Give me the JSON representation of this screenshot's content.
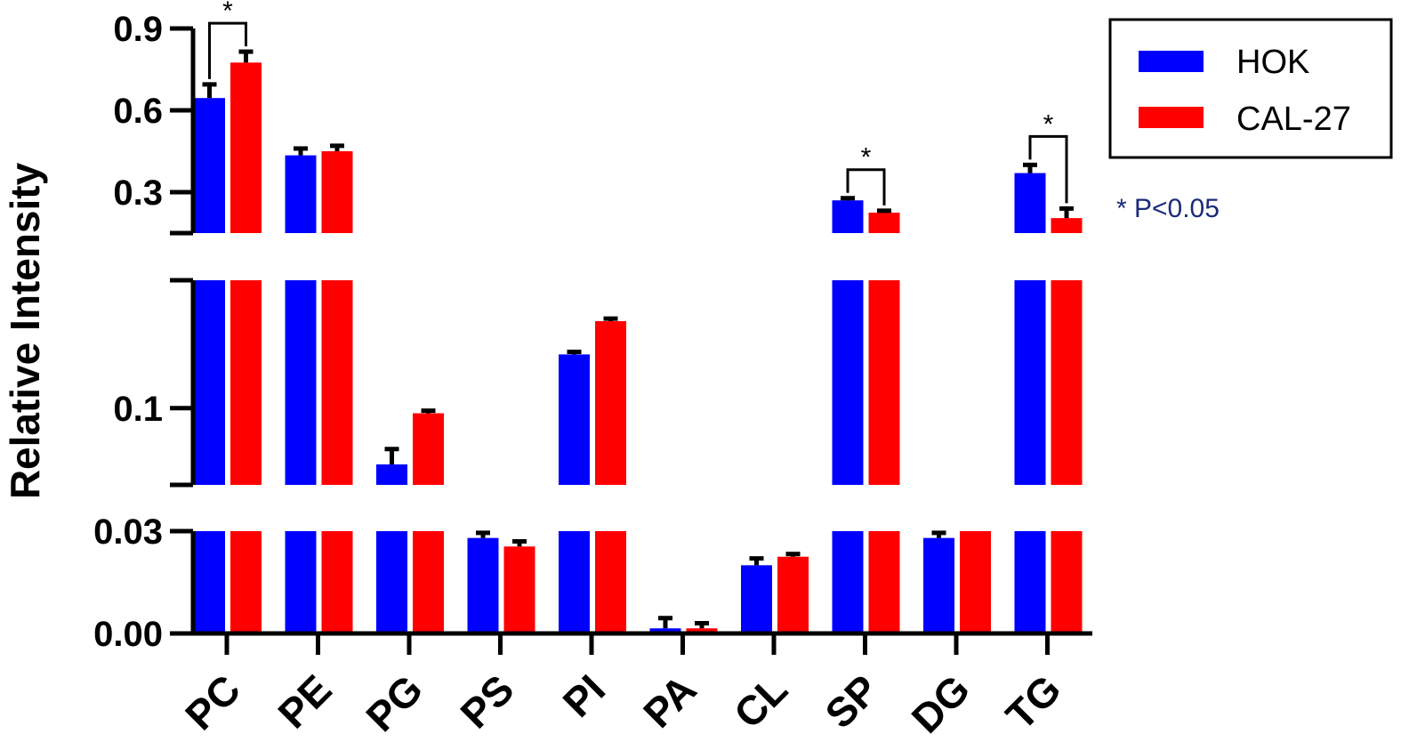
{
  "chart_data": {
    "type": "bar",
    "ylabel": "Relative Intensity",
    "xlabel": "",
    "categories": [
      "PC",
      "PE",
      "PG",
      "PS",
      "PI",
      "PA",
      "CL",
      "SP",
      "DG",
      "TG"
    ],
    "series": [
      {
        "name": "HOK",
        "color": "#0000ff",
        "values": [
          0.645,
          0.435,
          0.078,
          0.028,
          0.121,
          0.0015,
          0.02,
          0.27,
          0.028,
          0.37
        ],
        "errors": [
          0.05,
          0.025,
          0.006,
          0.0015,
          0.001,
          0.003,
          0.002,
          0.008,
          0.0015,
          0.03
        ]
      },
      {
        "name": "CAL-27",
        "color": "#ff0000",
        "values": [
          0.775,
          0.45,
          0.098,
          0.0255,
          0.134,
          0.0015,
          0.0225,
          0.225,
          0.068,
          0.205
        ],
        "errors": [
          0.04,
          0.02,
          0.001,
          0.0015,
          0.001,
          0.0015,
          0.0008,
          0.007,
          0.002,
          0.035
        ]
      }
    ],
    "y_segments": [
      {
        "range": [
          0.0,
          0.03
        ],
        "ticks": [
          "0.00",
          "0.03"
        ]
      },
      {
        "range": [
          0.07,
          0.15
        ],
        "ticks": [
          "0.1"
        ]
      },
      {
        "range": [
          0.15,
          0.9
        ],
        "ticks": [
          "0.3",
          "0.6",
          "0.9"
        ]
      }
    ],
    "significance": [
      {
        "category": "PC",
        "label": "*"
      },
      {
        "category": "SP",
        "label": "*"
      },
      {
        "category": "TG",
        "label": "*"
      }
    ],
    "annotation": "* P<0.05",
    "legend_position": "top-right"
  }
}
